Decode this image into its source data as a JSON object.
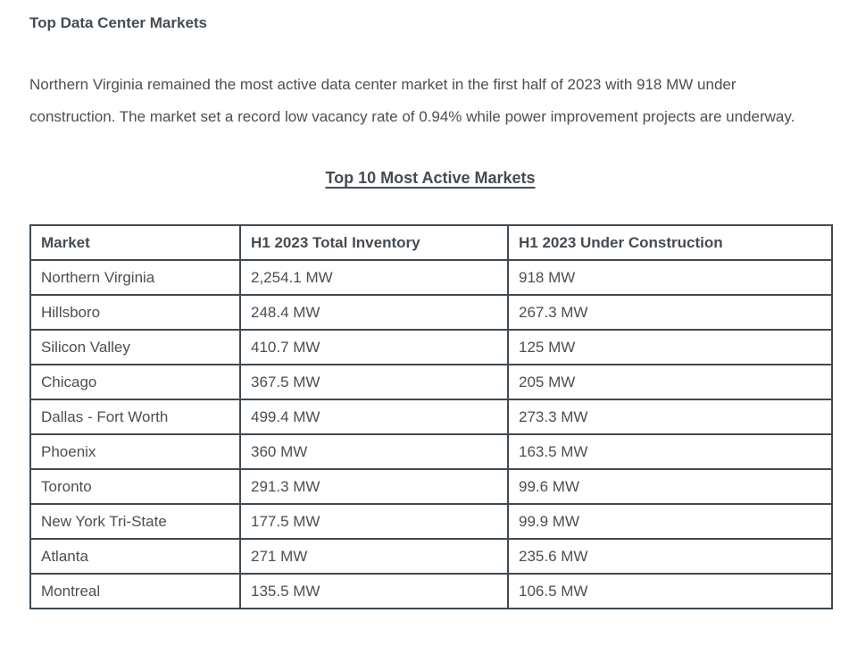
{
  "page": {
    "title": "Top Data Center Markets",
    "paragraph": "Northern Virginia remained the most active data center market in the first half of 2023 with 918 MW under construction. The market set a record low vacancy rate of 0.94% while power improvement projects are underway."
  },
  "table": {
    "title": "Top 10 Most Active Markets",
    "columns": [
      "Market",
      "H1 2023 Total Inventory",
      "H1 2023 Under Construction"
    ],
    "rows": [
      [
        "Northern Virginia",
        "2,254.1 MW",
        "918 MW"
      ],
      [
        "Hillsboro",
        "248.4 MW",
        "267.3 MW"
      ],
      [
        "Silicon Valley",
        "410.7 MW",
        "125 MW"
      ],
      [
        "Chicago",
        "367.5 MW",
        "205 MW"
      ],
      [
        "Dallas - Fort Worth",
        "499.4 MW",
        "273.3 MW"
      ],
      [
        "Phoenix",
        "360 MW",
        "163.5 MW"
      ],
      [
        "Toronto",
        "291.3 MW",
        "99.6 MW"
      ],
      [
        "New York Tri-State",
        "177.5 MW",
        "99.9 MW"
      ],
      [
        "Atlanta",
        "271 MW",
        "235.6 MW"
      ],
      [
        "Montreal",
        "135.5 MW",
        "106.5 MW"
      ]
    ]
  },
  "colors": {
    "text": "#4a4f54",
    "heading_text": "#454c52",
    "table_border": "#3f4a52",
    "background": "#ffffff"
  }
}
